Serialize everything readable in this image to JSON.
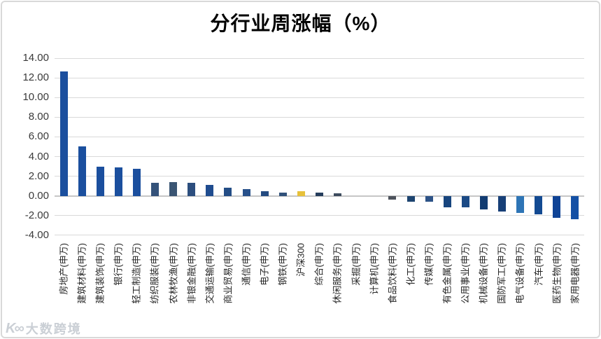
{
  "watermark": {
    "logo_glyph": "K∞",
    "text": "大数跨境"
  },
  "chart_data": {
    "type": "bar",
    "title": "分行业周涨幅（%）",
    "xlabel": "",
    "ylabel": "",
    "ylim": [
      -4.0,
      14.0
    ],
    "ytick_step": 2.0,
    "yticks": [
      "14.00",
      "12.00",
      "10.00",
      "8.00",
      "6.00",
      "4.00",
      "2.00",
      "0.00",
      "-2.00",
      "-4.00"
    ],
    "grid": true,
    "legend_position": "none",
    "bar_default_color": "#1b4f9e",
    "categories": [
      "房地产(申万)",
      "建筑材料(申万)",
      "建筑装饰(申万)",
      "银行(申万)",
      "轻工制造(申万)",
      "纺织服装(申万)",
      "农林牧渔(申万)",
      "非银金融(申万)",
      "交通运输(申万)",
      "商业贸易(申万)",
      "通信(申万)",
      "电子(申万)",
      "钢铁(申万)",
      "沪深300",
      "综合(申万)",
      "休闲服务(申万)",
      "采掘(申万)",
      "计算机(申万)",
      "食品饮料(申万)",
      "化工(申万)",
      "传媒(申万)",
      "有色金属(申万)",
      "公用事业(申万)",
      "机械设备(申万)",
      "国防军工(申万)",
      "电气设备(申万)",
      "汽车(申万)",
      "医药生物(申万)",
      "家用电器(申万)"
    ],
    "values": [
      12.65,
      5.0,
      3.0,
      2.9,
      2.75,
      1.3,
      1.4,
      1.35,
      1.15,
      0.85,
      0.7,
      0.5,
      0.35,
      0.5,
      0.35,
      0.25,
      0.0,
      0.0,
      -0.4,
      -0.6,
      -0.6,
      -1.15,
      -1.15,
      -1.4,
      -1.6,
      -1.75,
      -1.85,
      -2.2,
      -2.35
    ],
    "bar_colors": [
      "#1b4f9e",
      "#1b4f9e",
      "#1b4f9e",
      "#1b4f9e",
      "#1b4f9e",
      "#34527a",
      "#3a5573",
      "#2c4e7e",
      "#1f4c8f",
      "#234d85",
      "#27508a",
      "#234a80",
      "#30517a",
      "#e7c13b",
      "#253d5c",
      "#3d4b5e",
      "#1b4f9e",
      "#1b4f9e",
      "#4d535c",
      "#1d4470",
      "#2d5387",
      "#17457e",
      "#1b4a85",
      "#123c72",
      "#173f77",
      "#2e75b6",
      "#134a92",
      "#0f4396",
      "#1450a5"
    ]
  }
}
